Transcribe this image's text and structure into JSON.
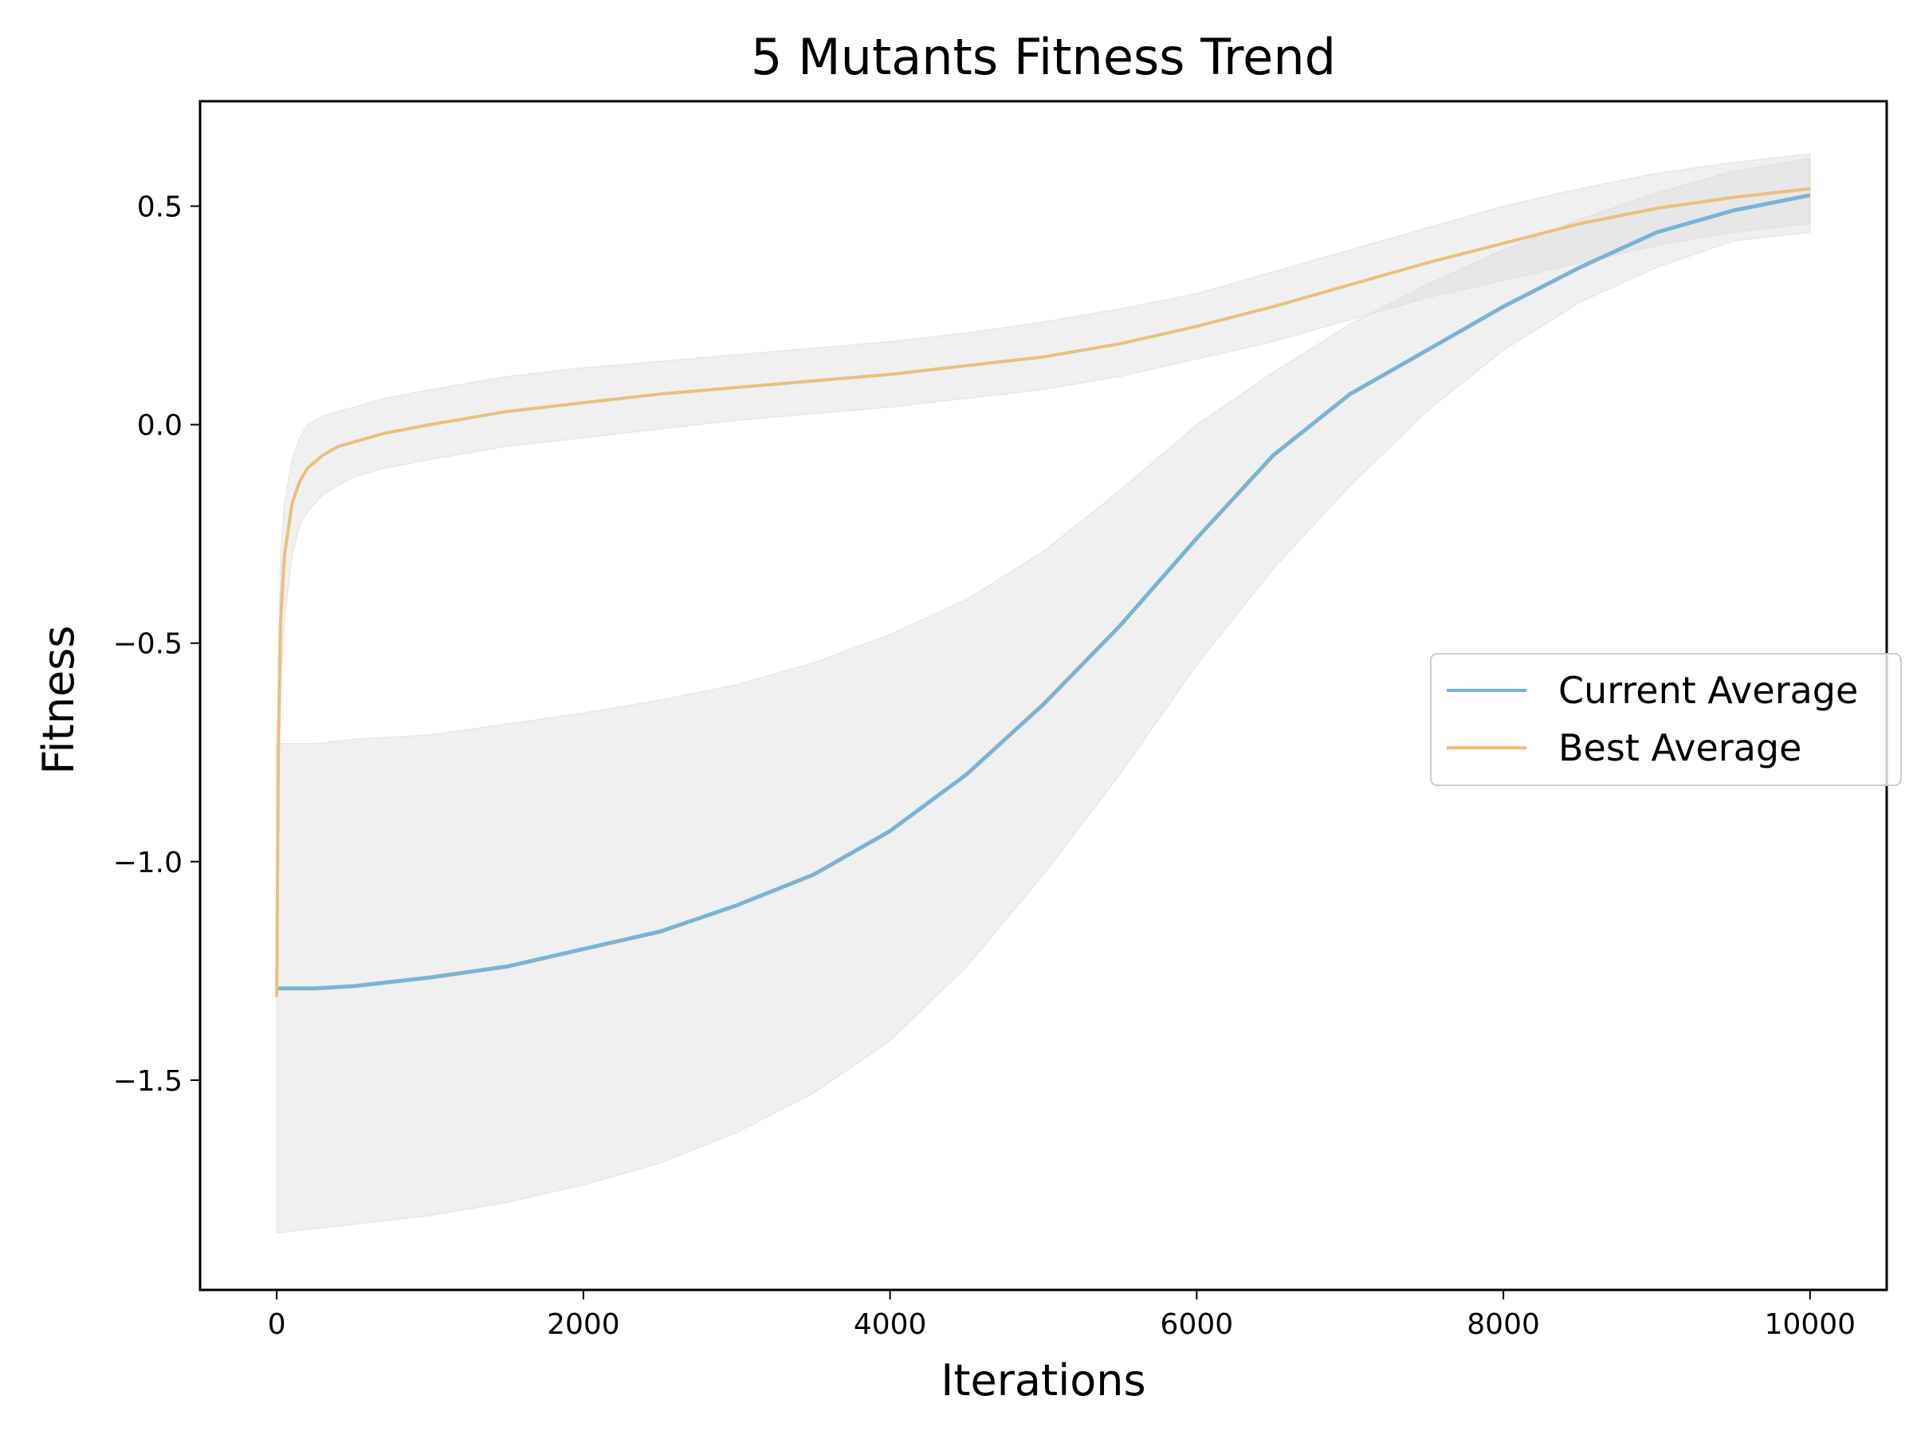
{
  "chart_data": {
    "type": "line",
    "title": "5 Mutants Fitness Trend",
    "xlabel": "Iterations",
    "ylabel": "Fitness",
    "xlim": [
      -500,
      10500
    ],
    "ylim": [
      -1.98,
      0.74
    ],
    "xticks": [
      0,
      2000,
      4000,
      6000,
      8000,
      10000
    ],
    "xtick_labels": [
      "0",
      "2000",
      "4000",
      "6000",
      "8000",
      "10000"
    ],
    "yticks": [
      0.5,
      0.0,
      -0.5,
      -1.0,
      -1.5
    ],
    "ytick_labels": [
      "0.5",
      "0.0",
      "−0.5",
      "−1.0",
      "−1.5"
    ],
    "grid": false,
    "legend_position": "center-right",
    "series": [
      {
        "name": "Current Average",
        "color": "#7ab3d4",
        "x": [
          0,
          250,
          500,
          1000,
          1500,
          2000,
          2500,
          3000,
          3500,
          4000,
          4500,
          5000,
          5500,
          6000,
          6500,
          7000,
          7500,
          8000,
          8500,
          9000,
          9500,
          10000
        ],
        "y": [
          -1.29,
          -1.29,
          -1.285,
          -1.265,
          -1.24,
          -1.2,
          -1.16,
          -1.1,
          -1.03,
          -0.93,
          -0.8,
          -0.64,
          -0.46,
          -0.26,
          -0.07,
          0.07,
          0.17,
          0.27,
          0.36,
          0.44,
          0.49,
          0.525
        ],
        "band_upper": [
          -0.73,
          -0.73,
          -0.72,
          -0.71,
          -0.685,
          -0.66,
          -0.63,
          -0.595,
          -0.545,
          -0.48,
          -0.4,
          -0.29,
          -0.15,
          0.0,
          0.12,
          0.23,
          0.32,
          0.4,
          0.47,
          0.53,
          0.58,
          0.61
        ],
        "band_lower": [
          -1.85,
          -1.84,
          -1.83,
          -1.81,
          -1.78,
          -1.74,
          -1.69,
          -1.62,
          -1.53,
          -1.41,
          -1.24,
          -1.03,
          -0.8,
          -0.55,
          -0.33,
          -0.14,
          0.03,
          0.17,
          0.28,
          0.36,
          0.42,
          0.44
        ]
      },
      {
        "name": "Best Average",
        "color": "#e9c07c",
        "x": [
          0,
          10,
          25,
          50,
          100,
          150,
          200,
          300,
          400,
          500,
          700,
          1000,
          1500,
          2000,
          2500,
          3000,
          3500,
          4000,
          4500,
          5000,
          5500,
          6000,
          6500,
          7000,
          7500,
          8000,
          8500,
          9000,
          9500,
          10000
        ],
        "y": [
          -1.31,
          -0.75,
          -0.45,
          -0.3,
          -0.18,
          -0.13,
          -0.1,
          -0.07,
          -0.05,
          -0.04,
          -0.02,
          0.0,
          0.03,
          0.05,
          0.07,
          0.085,
          0.1,
          0.115,
          0.135,
          0.155,
          0.185,
          0.225,
          0.27,
          0.32,
          0.37,
          0.415,
          0.46,
          0.495,
          0.52,
          0.54
        ],
        "band_upper": [
          -1.31,
          -0.55,
          -0.3,
          -0.18,
          -0.08,
          -0.03,
          0.0,
          0.02,
          0.03,
          0.04,
          0.06,
          0.08,
          0.11,
          0.13,
          0.145,
          0.16,
          0.175,
          0.19,
          0.21,
          0.235,
          0.265,
          0.3,
          0.35,
          0.4,
          0.45,
          0.5,
          0.54,
          0.575,
          0.6,
          0.62
        ],
        "band_lower": [
          -1.31,
          -0.95,
          -0.6,
          -0.45,
          -0.3,
          -0.23,
          -0.2,
          -0.16,
          -0.14,
          -0.12,
          -0.1,
          -0.08,
          -0.05,
          -0.03,
          -0.01,
          0.01,
          0.025,
          0.04,
          0.06,
          0.08,
          0.11,
          0.15,
          0.19,
          0.24,
          0.29,
          0.33,
          0.37,
          0.41,
          0.44,
          0.46
        ]
      }
    ],
    "band_color": "#d9d9d9"
  }
}
